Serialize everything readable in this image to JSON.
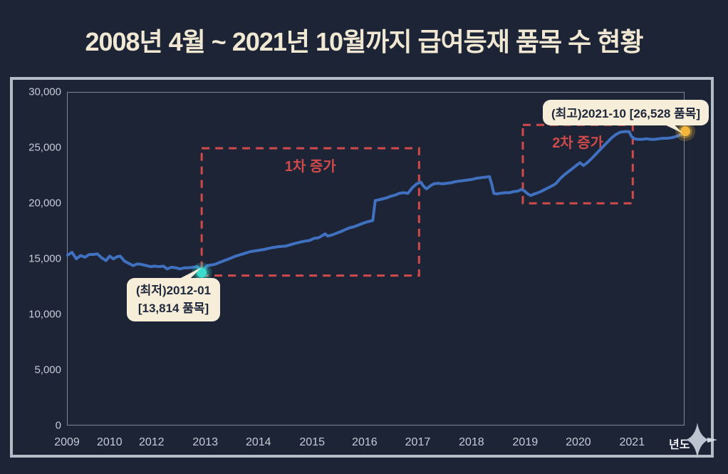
{
  "title": "2008년 4월 ~ 2021년 10월까지 급여등재 품목 수 현황",
  "colors": {
    "background": "#1c2436",
    "frame_border": "#b3bdc7",
    "plot_border": "#7e8795",
    "title_text": "#f0e8d3",
    "axis_text": "#c6ccd6",
    "line": "#4071c0",
    "region": "#cf4a4a",
    "min_point": "#3bdccb",
    "max_point": "#f2b63c",
    "callout_bg": "#f6eed9",
    "callout_text": "#20283c",
    "sparkle": "#bcc5cf"
  },
  "chart_data": {
    "type": "line",
    "title": "2008년 4월 ~ 2021년 10월까지 급여등재 품목 수 현황",
    "xlabel": "년도",
    "ylabel": "",
    "ylim": [
      0,
      30000
    ],
    "grid": false,
    "legend": "none",
    "y_ticks": [
      {
        "v": 30000,
        "label": "30,000"
      },
      {
        "v": 25000,
        "label": "25,000"
      },
      {
        "v": 20000,
        "label": "20,000"
      },
      {
        "v": 15000,
        "label": "15,000"
      },
      {
        "v": 10000,
        "label": "10,000"
      },
      {
        "v": 5000,
        "label": "5,000"
      },
      {
        "v": 0,
        "label": "0"
      }
    ],
    "x_ticks": [
      {
        "f": 0.0,
        "label": "2009"
      },
      {
        "f": 0.069,
        "label": "2010"
      },
      {
        "f": 0.137,
        "label": "2012"
      },
      {
        "f": 0.224,
        "label": "2013"
      },
      {
        "f": 0.31,
        "label": "2014"
      },
      {
        "f": 0.397,
        "label": "2015"
      },
      {
        "f": 0.482,
        "label": "2016"
      },
      {
        "f": 0.568,
        "label": "2017"
      },
      {
        "f": 0.655,
        "label": "2018"
      },
      {
        "f": 0.742,
        "label": "2019"
      },
      {
        "f": 0.828,
        "label": "2020"
      },
      {
        "f": 0.915,
        "label": "2021"
      }
    ],
    "series": [
      [
        0.0,
        15400
      ],
      [
        0.007,
        15650
      ],
      [
        0.014,
        15050
      ],
      [
        0.021,
        15350
      ],
      [
        0.028,
        15200
      ],
      [
        0.035,
        15450
      ],
      [
        0.042,
        15450
      ],
      [
        0.048,
        15500
      ],
      [
        0.055,
        15150
      ],
      [
        0.062,
        14900
      ],
      [
        0.068,
        15300
      ],
      [
        0.074,
        15050
      ],
      [
        0.08,
        15250
      ],
      [
        0.085,
        15300
      ],
      [
        0.092,
        14850
      ],
      [
        0.099,
        14650
      ],
      [
        0.106,
        14450
      ],
      [
        0.113,
        14600
      ],
      [
        0.12,
        14550
      ],
      [
        0.127,
        14450
      ],
      [
        0.134,
        14350
      ],
      [
        0.141,
        14400
      ],
      [
        0.148,
        14350
      ],
      [
        0.155,
        14400
      ],
      [
        0.161,
        14150
      ],
      [
        0.168,
        14300
      ],
      [
        0.175,
        14250
      ],
      [
        0.182,
        14150
      ],
      [
        0.189,
        14250
      ],
      [
        0.196,
        14250
      ],
      [
        0.203,
        14300
      ],
      [
        0.21,
        14350
      ],
      [
        0.217,
        13814
      ],
      [
        0.226,
        14450
      ],
      [
        0.238,
        14550
      ],
      [
        0.249,
        14800
      ],
      [
        0.261,
        15050
      ],
      [
        0.272,
        15300
      ],
      [
        0.284,
        15500
      ],
      [
        0.295,
        15700
      ],
      [
        0.307,
        15800
      ],
      [
        0.318,
        15900
      ],
      [
        0.33,
        16050
      ],
      [
        0.341,
        16150
      ],
      [
        0.353,
        16200
      ],
      [
        0.365,
        16400
      ],
      [
        0.376,
        16550
      ],
      [
        0.384,
        16650
      ],
      [
        0.391,
        16700
      ],
      [
        0.399,
        16900
      ],
      [
        0.406,
        16950
      ],
      [
        0.411,
        17100
      ],
      [
        0.417,
        17300
      ],
      [
        0.421,
        17100
      ],
      [
        0.428,
        17200
      ],
      [
        0.435,
        17350
      ],
      [
        0.442,
        17500
      ],
      [
        0.45,
        17700
      ],
      [
        0.457,
        17850
      ],
      [
        0.464,
        17950
      ],
      [
        0.471,
        18100
      ],
      [
        0.478,
        18250
      ],
      [
        0.486,
        18400
      ],
      [
        0.494,
        18500
      ],
      [
        0.498,
        20300
      ],
      [
        0.503,
        20350
      ],
      [
        0.51,
        20450
      ],
      [
        0.517,
        20550
      ],
      [
        0.524,
        20700
      ],
      [
        0.531,
        20800
      ],
      [
        0.537,
        20950
      ],
      [
        0.544,
        21000
      ],
      [
        0.551,
        20950
      ],
      [
        0.558,
        21450
      ],
      [
        0.565,
        21800
      ],
      [
        0.572,
        21950
      ],
      [
        0.576,
        21600
      ],
      [
        0.581,
        21350
      ],
      [
        0.588,
        21650
      ],
      [
        0.593,
        21800
      ],
      [
        0.6,
        21850
      ],
      [
        0.607,
        21800
      ],
      [
        0.614,
        21850
      ],
      [
        0.621,
        21900
      ],
      [
        0.628,
        22000
      ],
      [
        0.635,
        22050
      ],
      [
        0.642,
        22100
      ],
      [
        0.648,
        22150
      ],
      [
        0.655,
        22200
      ],
      [
        0.662,
        22300
      ],
      [
        0.669,
        22350
      ],
      [
        0.676,
        22400
      ],
      [
        0.683,
        22450
      ],
      [
        0.687,
        21700
      ],
      [
        0.69,
        20950
      ],
      [
        0.694,
        20900
      ],
      [
        0.701,
        20950
      ],
      [
        0.708,
        21000
      ],
      [
        0.715,
        21000
      ],
      [
        0.722,
        21100
      ],
      [
        0.729,
        21150
      ],
      [
        0.735,
        21300
      ],
      [
        0.74,
        21150
      ],
      [
        0.745,
        20900
      ],
      [
        0.75,
        20750
      ],
      [
        0.754,
        20850
      ],
      [
        0.759,
        20950
      ],
      [
        0.766,
        21100
      ],
      [
        0.773,
        21300
      ],
      [
        0.78,
        21500
      ],
      [
        0.787,
        21700
      ],
      [
        0.791,
        21850
      ],
      [
        0.798,
        22300
      ],
      [
        0.805,
        22650
      ],
      [
        0.812,
        22950
      ],
      [
        0.819,
        23250
      ],
      [
        0.826,
        23550
      ],
      [
        0.83,
        23700
      ],
      [
        0.835,
        23450
      ],
      [
        0.84,
        23650
      ],
      [
        0.847,
        24000
      ],
      [
        0.854,
        24400
      ],
      [
        0.86,
        24750
      ],
      [
        0.867,
        25150
      ],
      [
        0.874,
        25550
      ],
      [
        0.881,
        25950
      ],
      [
        0.888,
        26250
      ],
      [
        0.895,
        26450
      ],
      [
        0.902,
        26500
      ],
      [
        0.909,
        26500
      ],
      [
        0.913,
        26050
      ],
      [
        0.918,
        25850
      ],
      [
        0.923,
        25800
      ],
      [
        0.93,
        25800
      ],
      [
        0.937,
        25850
      ],
      [
        0.944,
        25800
      ],
      [
        0.951,
        25800
      ],
      [
        0.957,
        25850
      ],
      [
        0.964,
        25900
      ],
      [
        0.971,
        25900
      ],
      [
        0.978,
        25950
      ],
      [
        0.985,
        26050
      ],
      [
        0.992,
        26200
      ],
      [
        1.0,
        26528
      ]
    ],
    "key_points": [
      {
        "id": "min",
        "f": 0.217,
        "v": 13814,
        "date": "2012-01",
        "label": "(최저)2012-01 [13,814 품목]",
        "color": "#3bdccb"
      },
      {
        "id": "max",
        "f": 1.0,
        "v": 26528,
        "date": "2021-10",
        "label": "(최고)2021-10 [26,528 품목]",
        "color": "#f2b63c"
      }
    ],
    "regions": [
      {
        "label": "1차 증가",
        "f1": 0.217,
        "f2": 0.569,
        "v1": 13550,
        "v2": 25000
      },
      {
        "label": "2차 증가",
        "f1": 0.737,
        "f2": 0.915,
        "v1": 20050,
        "v2": 27100
      }
    ],
    "annotations": {
      "min": {
        "line1": "(최저)2012-01",
        "line2": "[13,814 품목]"
      },
      "max": {
        "text": "(최고)2021-10 [26,528 품목]"
      }
    }
  }
}
